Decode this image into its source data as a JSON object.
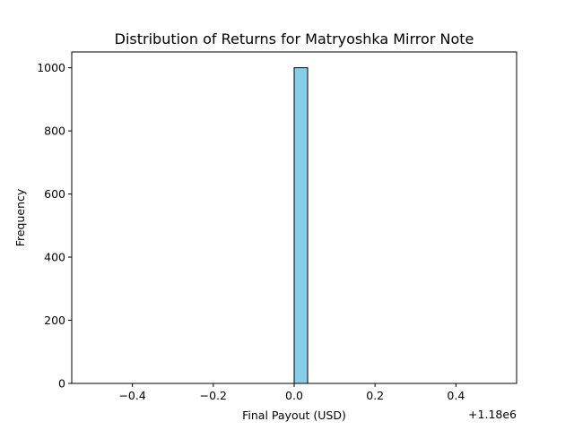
{
  "chart_data": {
    "type": "bar",
    "title": "Distribution of Returns for Matryoshka Mirror Note",
    "xlabel": "Final Payout (USD)",
    "ylabel": "Frequency",
    "x_offset_label": "+1.18e6",
    "xlim": [
      -0.55,
      0.55
    ],
    "ylim": [
      0,
      1050
    ],
    "x_ticks": [
      -0.4,
      -0.2,
      0.0,
      0.2,
      0.4
    ],
    "x_tick_labels": [
      "−0.4",
      "−0.2",
      "0.0",
      "0.2",
      "0.4"
    ],
    "y_ticks": [
      0,
      200,
      400,
      600,
      800,
      1000
    ],
    "y_tick_labels": [
      "0",
      "200",
      "400",
      "600",
      "800",
      "1000"
    ],
    "bin_range": [
      -0.5,
      0.5
    ],
    "bins": 30,
    "counts": [
      0,
      0,
      0,
      0,
      0,
      0,
      0,
      0,
      0,
      0,
      0,
      0,
      0,
      0,
      0,
      1000,
      0,
      0,
      0,
      0,
      0,
      0,
      0,
      0,
      0,
      0,
      0,
      0,
      0,
      0
    ],
    "bar_color": "#87ceeb",
    "edge_color": "#000000",
    "grid": false
  }
}
